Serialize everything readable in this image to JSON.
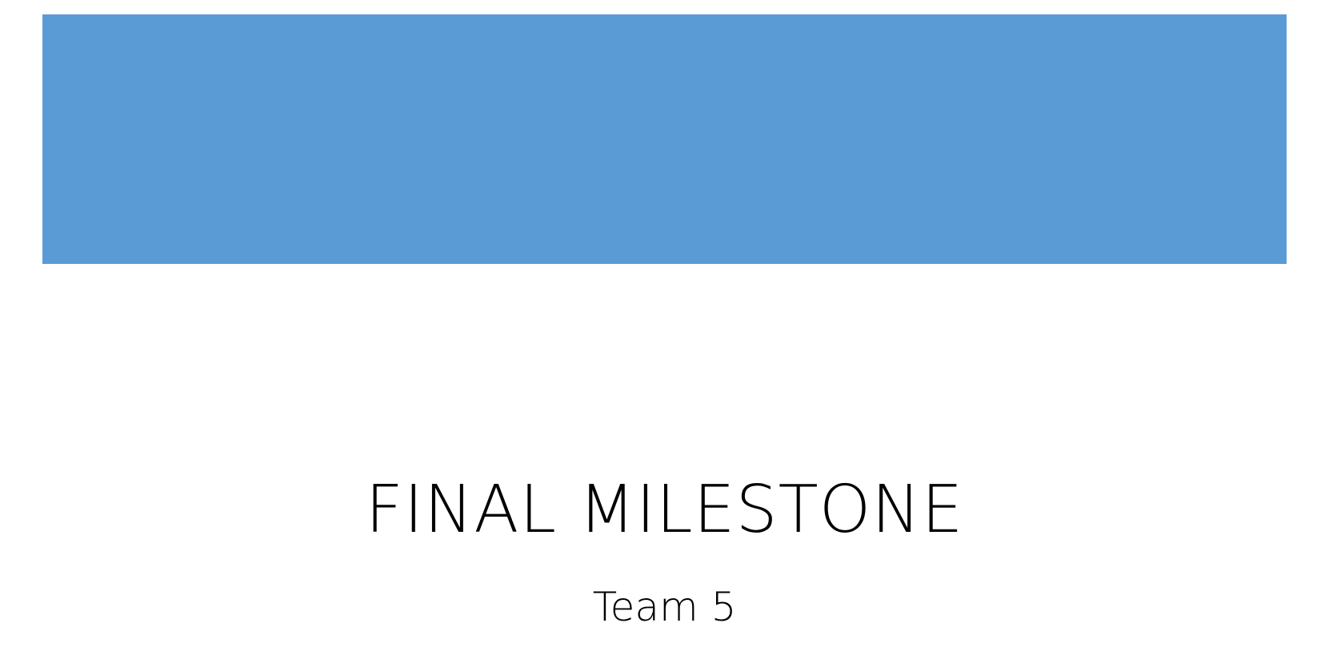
{
  "slide": {
    "title": "FINAL MILESTONE",
    "subtitle": "Team 5"
  },
  "colors": {
    "banner": "#5b9bd5",
    "background": "#ffffff",
    "text": "#000000"
  }
}
